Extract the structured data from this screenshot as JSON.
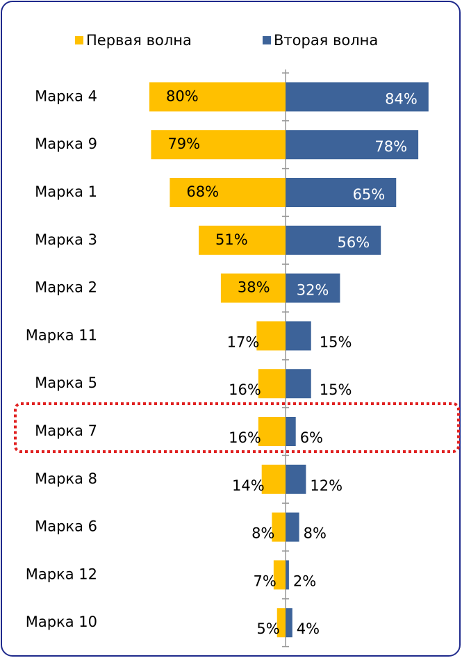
{
  "chart_data": {
    "type": "butterfly",
    "categories": [
      "Марка 4",
      "Марка 9",
      "Марка 1",
      "Марка 3",
      "Марка 2",
      "Марка 11",
      "Марка 5",
      "Марка 7",
      "Марка 8",
      "Марка 6",
      "Марка 12",
      "Марка 10"
    ],
    "series": [
      {
        "name": "Первая волна",
        "color": "#FFC000",
        "values": [
          80,
          79,
          68,
          51,
          38,
          17,
          16,
          16,
          14,
          8,
          7,
          5
        ],
        "value_labels": [
          "80%",
          "79%",
          "68%",
          "51%",
          "38%",
          "17%",
          "16%",
          "16%",
          "14%",
          "8%",
          "7%",
          "5%"
        ]
      },
      {
        "name": "Вторая волна",
        "color": "#3D6399",
        "values": [
          84,
          78,
          65,
          56,
          32,
          15,
          15,
          6,
          12,
          8,
          2,
          4
        ],
        "value_labels": [
          "84%",
          "78%",
          "65%",
          "56%",
          "32%",
          "15%",
          "15%",
          "6%",
          "12%",
          "8%",
          "2%",
          "4%"
        ]
      }
    ]
  }
}
